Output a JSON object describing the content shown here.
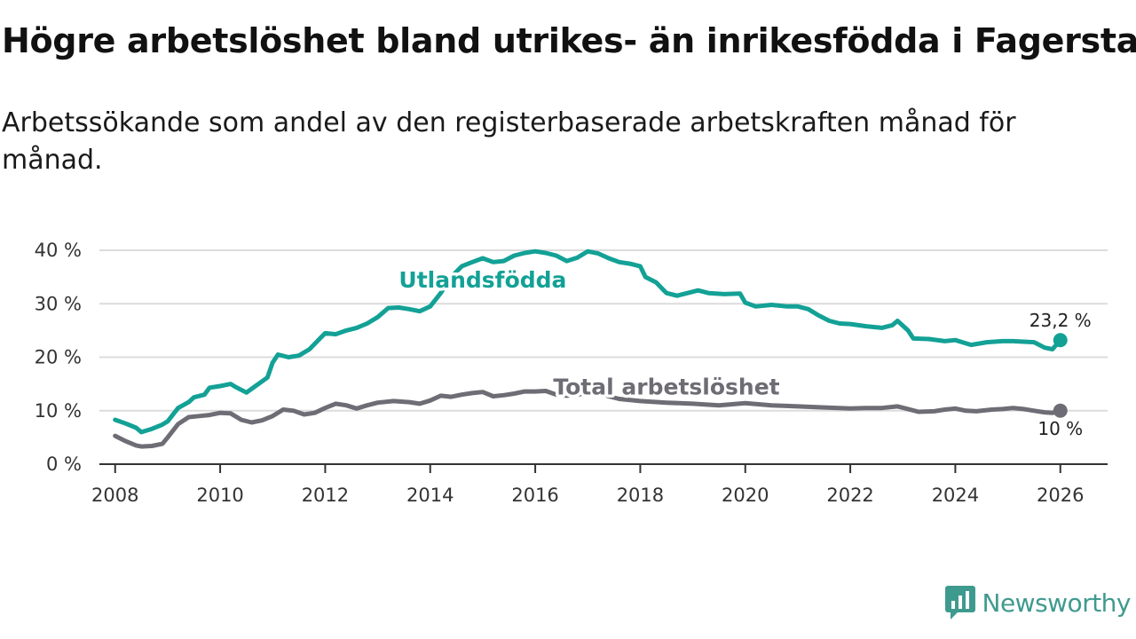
{
  "title": "Högre arbetslöshet bland utrikes- än inrikesfödda i Fagersta",
  "subtitle": "Arbetssökande som andel av den registerbaserade arbetskraften månad för månad.",
  "brand": {
    "name": "Newsworthy",
    "icon": "newsworthy-logo-icon",
    "color": "#3f9a8e"
  },
  "chart_data": {
    "type": "line",
    "title": "Högre arbetslöshet bland utrikes- än inrikesfödda i Fagersta",
    "xlabel": "",
    "ylabel": "",
    "xlim": [
      2007.7,
      2026.9
    ],
    "ylim": [
      0,
      40
    ],
    "x_ticks": [
      2008,
      2010,
      2012,
      2014,
      2016,
      2018,
      2020,
      2022,
      2024,
      2026
    ],
    "x_tick_labels": [
      "2008",
      "2010",
      "2012",
      "2014",
      "2016",
      "2018",
      "2020",
      "2022",
      "2024",
      "2026"
    ],
    "y_ticks": [
      0,
      10,
      20,
      30,
      40
    ],
    "y_tick_labels": [
      "0 %",
      "10 %",
      "20 %",
      "30 %",
      "40 %"
    ],
    "grid": true,
    "series": [
      {
        "name": "Utlandsfödda",
        "color": "#13a196",
        "end_label": "23,2 %",
        "points": [
          [
            2008.0,
            8.3
          ],
          [
            2008.2,
            7.6
          ],
          [
            2008.4,
            6.8
          ],
          [
            2008.5,
            6.0
          ],
          [
            2008.7,
            6.6
          ],
          [
            2008.9,
            7.4
          ],
          [
            2009.0,
            8.0
          ],
          [
            2009.2,
            10.5
          ],
          [
            2009.4,
            11.6
          ],
          [
            2009.5,
            12.5
          ],
          [
            2009.7,
            13.0
          ],
          [
            2009.8,
            14.3
          ],
          [
            2010.0,
            14.6
          ],
          [
            2010.2,
            15.0
          ],
          [
            2010.3,
            14.4
          ],
          [
            2010.5,
            13.4
          ],
          [
            2010.7,
            14.8
          ],
          [
            2010.9,
            16.2
          ],
          [
            2011.0,
            19.0
          ],
          [
            2011.1,
            20.5
          ],
          [
            2011.3,
            20.0
          ],
          [
            2011.5,
            20.3
          ],
          [
            2011.7,
            21.5
          ],
          [
            2011.9,
            23.5
          ],
          [
            2012.0,
            24.5
          ],
          [
            2012.2,
            24.3
          ],
          [
            2012.4,
            25.0
          ],
          [
            2012.6,
            25.5
          ],
          [
            2012.8,
            26.3
          ],
          [
            2013.0,
            27.5
          ],
          [
            2013.2,
            29.2
          ],
          [
            2013.4,
            29.3
          ],
          [
            2013.6,
            29.0
          ],
          [
            2013.8,
            28.6
          ],
          [
            2014.0,
            29.5
          ],
          [
            2014.2,
            32.0
          ],
          [
            2014.4,
            35.0
          ],
          [
            2014.6,
            37.0
          ],
          [
            2014.8,
            37.8
          ],
          [
            2015.0,
            38.5
          ],
          [
            2015.2,
            37.8
          ],
          [
            2015.4,
            38.0
          ],
          [
            2015.6,
            39.0
          ],
          [
            2015.8,
            39.5
          ],
          [
            2016.0,
            39.8
          ],
          [
            2016.2,
            39.5
          ],
          [
            2016.4,
            39.0
          ],
          [
            2016.6,
            38.0
          ],
          [
            2016.8,
            38.6
          ],
          [
            2017.0,
            39.8
          ],
          [
            2017.2,
            39.4
          ],
          [
            2017.4,
            38.5
          ],
          [
            2017.6,
            37.8
          ],
          [
            2017.8,
            37.5
          ],
          [
            2018.0,
            37.0
          ],
          [
            2018.1,
            35.0
          ],
          [
            2018.3,
            34.0
          ],
          [
            2018.5,
            32.0
          ],
          [
            2018.7,
            31.5
          ],
          [
            2018.9,
            32.0
          ],
          [
            2019.1,
            32.5
          ],
          [
            2019.3,
            32.0
          ],
          [
            2019.6,
            31.8
          ],
          [
            2019.9,
            31.9
          ],
          [
            2020.0,
            30.2
          ],
          [
            2020.2,
            29.5
          ],
          [
            2020.5,
            29.8
          ],
          [
            2020.8,
            29.5
          ],
          [
            2021.0,
            29.5
          ],
          [
            2021.2,
            29.0
          ],
          [
            2021.4,
            27.8
          ],
          [
            2021.6,
            26.8
          ],
          [
            2021.8,
            26.3
          ],
          [
            2022.0,
            26.2
          ],
          [
            2022.3,
            25.8
          ],
          [
            2022.6,
            25.5
          ],
          [
            2022.8,
            26.0
          ],
          [
            2022.9,
            26.8
          ],
          [
            2023.1,
            25.0
          ],
          [
            2023.2,
            23.5
          ],
          [
            2023.5,
            23.4
          ],
          [
            2023.8,
            23.0
          ],
          [
            2024.0,
            23.2
          ],
          [
            2024.3,
            22.3
          ],
          [
            2024.6,
            22.8
          ],
          [
            2024.9,
            23.0
          ],
          [
            2025.1,
            23.0
          ],
          [
            2025.3,
            22.9
          ],
          [
            2025.5,
            22.8
          ],
          [
            2025.7,
            21.8
          ],
          [
            2025.85,
            21.5
          ],
          [
            2026.0,
            23.2
          ]
        ]
      },
      {
        "name": "Total arbetslöshet",
        "color": "#6e6c74",
        "end_label": "10 %",
        "points": [
          [
            2008.0,
            5.3
          ],
          [
            2008.2,
            4.3
          ],
          [
            2008.4,
            3.5
          ],
          [
            2008.5,
            3.3
          ],
          [
            2008.7,
            3.4
          ],
          [
            2008.9,
            3.8
          ],
          [
            2009.0,
            5.0
          ],
          [
            2009.2,
            7.5
          ],
          [
            2009.4,
            8.8
          ],
          [
            2009.6,
            9.0
          ],
          [
            2009.8,
            9.2
          ],
          [
            2010.0,
            9.6
          ],
          [
            2010.2,
            9.5
          ],
          [
            2010.4,
            8.3
          ],
          [
            2010.6,
            7.8
          ],
          [
            2010.8,
            8.2
          ],
          [
            2011.0,
            9.0
          ],
          [
            2011.2,
            10.2
          ],
          [
            2011.4,
            10.0
          ],
          [
            2011.6,
            9.3
          ],
          [
            2011.8,
            9.6
          ],
          [
            2012.0,
            10.5
          ],
          [
            2012.2,
            11.3
          ],
          [
            2012.4,
            11.0
          ],
          [
            2012.6,
            10.4
          ],
          [
            2012.8,
            11.0
          ],
          [
            2013.0,
            11.5
          ],
          [
            2013.3,
            11.8
          ],
          [
            2013.6,
            11.6
          ],
          [
            2013.8,
            11.3
          ],
          [
            2014.0,
            11.9
          ],
          [
            2014.2,
            12.8
          ],
          [
            2014.4,
            12.6
          ],
          [
            2014.6,
            13.0
          ],
          [
            2014.8,
            13.3
          ],
          [
            2015.0,
            13.5
          ],
          [
            2015.2,
            12.7
          ],
          [
            2015.4,
            12.9
          ],
          [
            2015.6,
            13.2
          ],
          [
            2015.8,
            13.6
          ],
          [
            2016.0,
            13.6
          ],
          [
            2016.2,
            13.7
          ],
          [
            2016.4,
            13.0
          ],
          [
            2016.6,
            12.8
          ],
          [
            2016.8,
            13.0
          ],
          [
            2017.0,
            13.3
          ],
          [
            2017.2,
            13.4
          ],
          [
            2017.4,
            12.7
          ],
          [
            2017.6,
            12.2
          ],
          [
            2018.0,
            11.8
          ],
          [
            2018.5,
            11.5
          ],
          [
            2019.0,
            11.3
          ],
          [
            2019.5,
            11.0
          ],
          [
            2020.0,
            11.4
          ],
          [
            2020.5,
            11.0
          ],
          [
            2021.0,
            10.8
          ],
          [
            2021.5,
            10.6
          ],
          [
            2022.0,
            10.4
          ],
          [
            2022.3,
            10.5
          ],
          [
            2022.6,
            10.5
          ],
          [
            2022.9,
            10.8
          ],
          [
            2023.1,
            10.3
          ],
          [
            2023.3,
            9.8
          ],
          [
            2023.6,
            9.9
          ],
          [
            2023.8,
            10.2
          ],
          [
            2024.0,
            10.4
          ],
          [
            2024.2,
            10.0
          ],
          [
            2024.4,
            9.9
          ],
          [
            2024.7,
            10.2
          ],
          [
            2024.9,
            10.3
          ],
          [
            2025.1,
            10.5
          ],
          [
            2025.3,
            10.3
          ],
          [
            2025.5,
            10.0
          ],
          [
            2025.7,
            9.7
          ],
          [
            2025.85,
            9.6
          ],
          [
            2026.0,
            10.0
          ]
        ]
      }
    ],
    "annotations": [
      {
        "text": "Utlandsfödda",
        "series": "Utlandsfödda",
        "x": 2015.0,
        "y": 33.0
      },
      {
        "text": "Total arbetslöshet",
        "series": "Total arbetslöshet",
        "x": 2018.5,
        "y": 13.0
      }
    ]
  }
}
